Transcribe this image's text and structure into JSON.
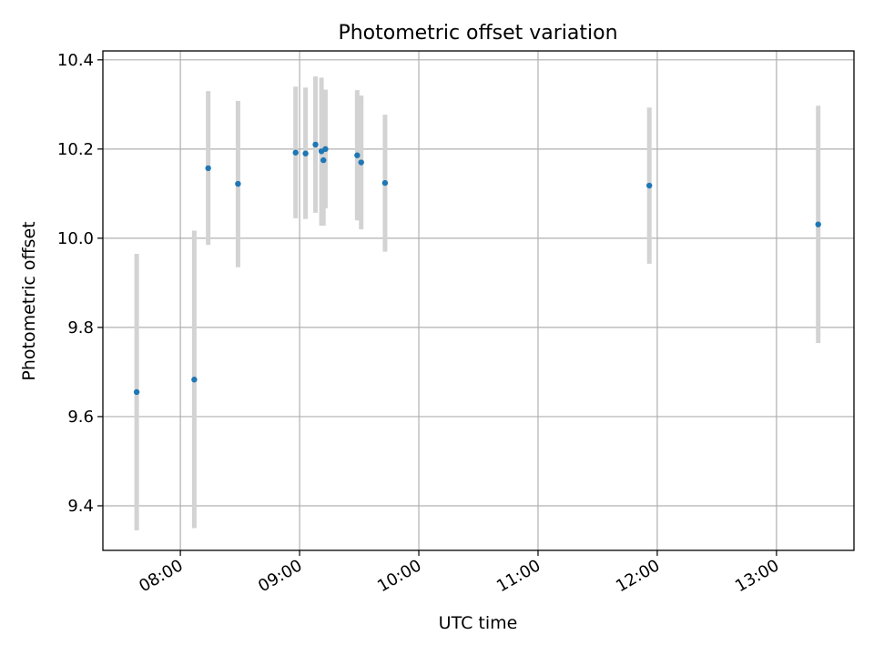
{
  "chart_data": {
    "type": "scatter",
    "title": "Photometric offset variation",
    "xlabel": "UTC time",
    "ylabel": "Photometric offset",
    "xlim": [
      "07:21",
      "13:39"
    ],
    "ylim": [
      9.3,
      10.42
    ],
    "grid": true,
    "x_ticks": [
      "08:00",
      "09:00",
      "10:00",
      "11:00",
      "12:00",
      "13:00"
    ],
    "y_ticks": [
      "9.4",
      "9.6",
      "9.8",
      "10.0",
      "10.2",
      "10.4"
    ],
    "colors": {
      "point": "#1f77b4",
      "errorbar": "#d3d3d3",
      "grid": "#b0b0b0"
    },
    "points": [
      {
        "x": "07:38",
        "y": 9.655,
        "ylow": 9.345,
        "yhigh": 9.965
      },
      {
        "x": "08:07",
        "y": 9.683,
        "ylow": 9.35,
        "yhigh": 10.017
      },
      {
        "x": "08:14",
        "y": 10.157,
        "ylow": 9.985,
        "yhigh": 10.33
      },
      {
        "x": "08:29",
        "y": 10.122,
        "ylow": 9.935,
        "yhigh": 10.308
      },
      {
        "x": "08:58",
        "y": 10.192,
        "ylow": 10.045,
        "yhigh": 10.34
      },
      {
        "x": "09:03",
        "y": 10.19,
        "ylow": 10.043,
        "yhigh": 10.338
      },
      {
        "x": "09:08",
        "y": 10.21,
        "ylow": 10.057,
        "yhigh": 10.363
      },
      {
        "x": "09:11",
        "y": 10.195,
        "ylow": 10.028,
        "yhigh": 10.36
      },
      {
        "x": "09:12",
        "y": 10.175,
        "ylow": 10.028,
        "yhigh": 10.322
      },
      {
        "x": "09:13",
        "y": 10.2,
        "ylow": 10.067,
        "yhigh": 10.333
      },
      {
        "x": "09:29",
        "y": 10.186,
        "ylow": 10.04,
        "yhigh": 10.332
      },
      {
        "x": "09:31",
        "y": 10.17,
        "ylow": 10.02,
        "yhigh": 10.32
      },
      {
        "x": "09:43",
        "y": 10.124,
        "ylow": 9.97,
        "yhigh": 10.277
      },
      {
        "x": "11:56",
        "y": 10.118,
        "ylow": 9.943,
        "yhigh": 10.293
      },
      {
        "x": "13:21",
        "y": 10.031,
        "ylow": 9.765,
        "yhigh": 10.297
      }
    ]
  }
}
